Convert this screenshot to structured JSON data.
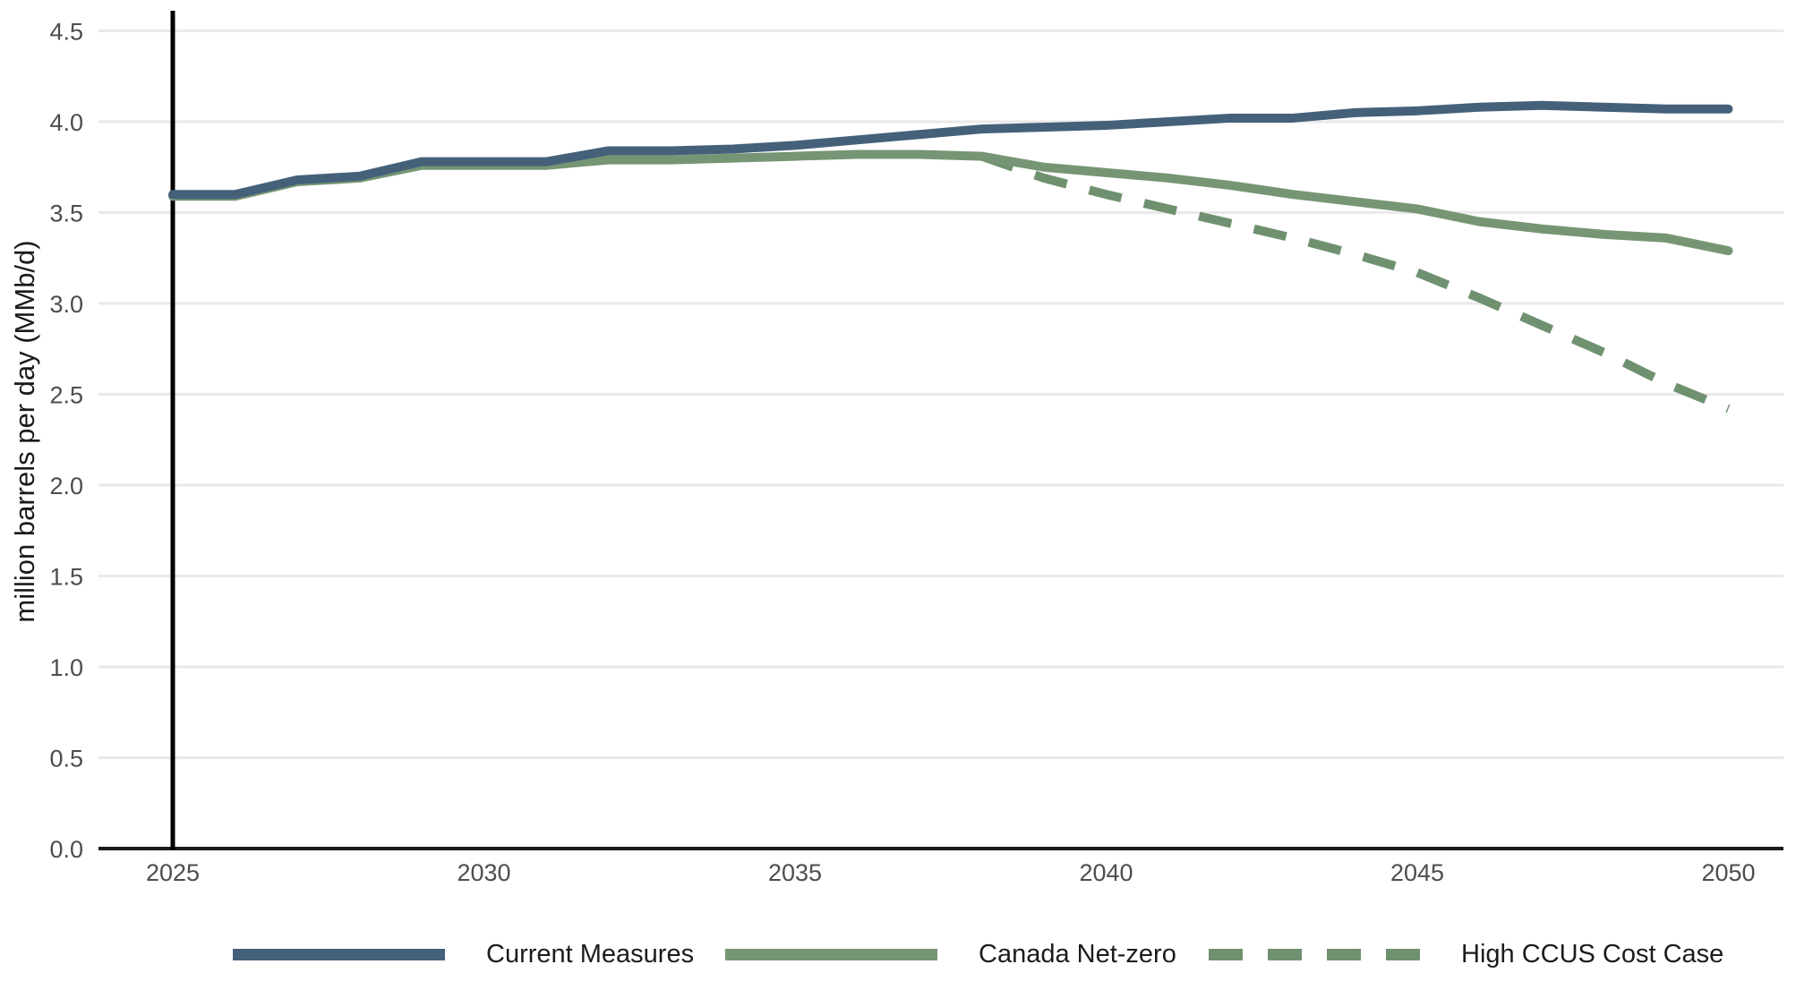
{
  "chart_data": {
    "type": "line",
    "ylabel": "million barrels per day (MMb/d)",
    "xlabel": "",
    "ylim": [
      0,
      4.6
    ],
    "xlim": [
      2023.8,
      2050.9
    ],
    "grid": "horizontal",
    "grid_color": "#e9e9e9",
    "axis_line_color": "#1b1b1b",
    "tick_label_color": "#4d4d4d",
    "legend_position": "bottom",
    "x": [
      2025,
      2026,
      2027,
      2028,
      2029,
      2030,
      2031,
      2032,
      2033,
      2034,
      2035,
      2036,
      2037,
      2038,
      2039,
      2040,
      2041,
      2042,
      2043,
      2044,
      2045,
      2046,
      2047,
      2048,
      2049,
      2050
    ],
    "x_ticks": [
      "2025",
      "2030",
      "2035",
      "2040",
      "2045",
      "2050"
    ],
    "y_ticks": [
      "0.0",
      "0.5",
      "1.0",
      "1.5",
      "2.0",
      "2.5",
      "3.0",
      "3.5",
      "4.0",
      "4.5"
    ],
    "annotations": [
      {
        "type": "vline",
        "x": 2025,
        "color": "#000000"
      }
    ],
    "series": [
      {
        "name": "Current Measures",
        "color": "#45617a",
        "style": "solid",
        "values": [
          3.6,
          3.6,
          3.68,
          3.7,
          3.78,
          3.78,
          3.78,
          3.84,
          3.84,
          3.85,
          3.87,
          3.9,
          3.93,
          3.96,
          3.97,
          3.98,
          4.0,
          4.02,
          4.02,
          4.05,
          4.06,
          4.08,
          4.09,
          4.08,
          4.07,
          4.07
        ]
      },
      {
        "name": "Canada Net-zero",
        "color": "#769574",
        "style": "solid",
        "values": [
          3.59,
          3.59,
          3.67,
          3.69,
          3.76,
          3.76,
          3.76,
          3.79,
          3.79,
          3.8,
          3.81,
          3.82,
          3.82,
          3.81,
          3.75,
          3.72,
          3.69,
          3.65,
          3.6,
          3.56,
          3.52,
          3.45,
          3.41,
          3.38,
          3.36,
          3.29
        ]
      },
      {
        "name": "High CCUS Cost Case",
        "color": "#6f9170",
        "style": "dashed",
        "values": [
          null,
          null,
          null,
          null,
          null,
          null,
          null,
          null,
          null,
          null,
          null,
          null,
          null,
          3.81,
          3.69,
          3.6,
          3.52,
          3.44,
          3.36,
          3.27,
          3.17,
          3.03,
          2.88,
          2.73,
          2.56,
          2.42
        ]
      }
    ]
  },
  "legend": {
    "items": [
      {
        "label": "Current Measures"
      },
      {
        "label": "Canada Net-zero"
      },
      {
        "label": "High CCUS Cost Case"
      }
    ]
  }
}
